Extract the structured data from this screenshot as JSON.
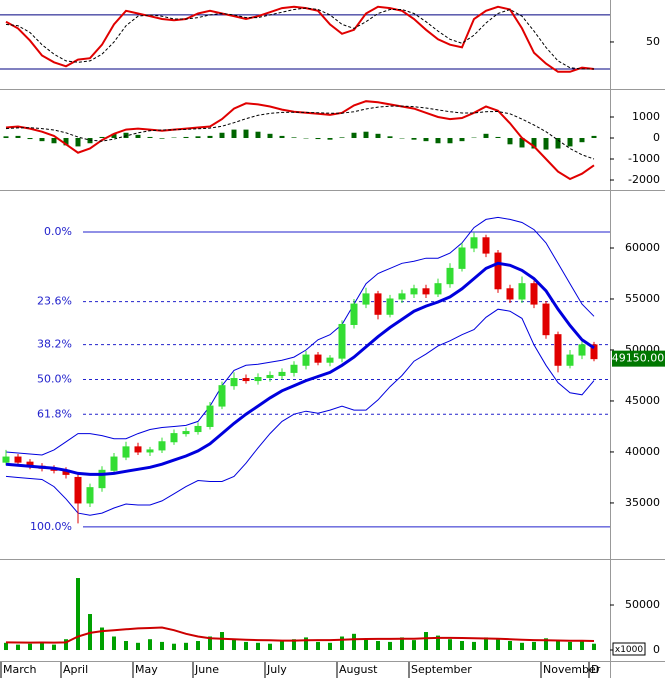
{
  "chart_data": [
    {
      "type": "line",
      "ylim": [
        16,
        81
      ],
      "yticks": [
        50
      ],
      "levels": [
        30,
        70
      ],
      "series": [
        {
          "color": "#e00000",
          "values": [
            65,
            60,
            51,
            40,
            35,
            32,
            37,
            38,
            48,
            63,
            73,
            71,
            69,
            67,
            66,
            67,
            71,
            73,
            71,
            69,
            67,
            69,
            72,
            75,
            76,
            75,
            73,
            63,
            56,
            59,
            71,
            76,
            75,
            73,
            67,
            59,
            52,
            48,
            46,
            67,
            73,
            76,
            74,
            60,
            42,
            34,
            28,
            28,
            31,
            30
          ]
        },
        {
          "color": "#000000",
          "dashed": true,
          "values": [
            63,
            62,
            57,
            48,
            41,
            36,
            35,
            36,
            41,
            50,
            62,
            69,
            70,
            69,
            67,
            67,
            68,
            70,
            71,
            70,
            68,
            68,
            70,
            72,
            74,
            75,
            74,
            70,
            63,
            60,
            65,
            71,
            74,
            74,
            71,
            65,
            58,
            52,
            49,
            55,
            64,
            71,
            74,
            69,
            58,
            46,
            36,
            31,
            30,
            30
          ]
        }
      ]
    },
    {
      "type": "macd",
      "ylim": [
        -2380,
        2190
      ],
      "yticks": [
        1000,
        0,
        -1000,
        -2000
      ],
      "histogram": {
        "color": "#006400",
        "values": [
          80,
          100,
          -50,
          -150,
          -250,
          -350,
          -400,
          -250,
          50,
          200,
          250,
          150,
          50,
          -30,
          20,
          50,
          80,
          100,
          250,
          400,
          400,
          300,
          200,
          100,
          30,
          -20,
          -50,
          -80,
          30,
          250,
          300,
          200,
          80,
          -20,
          -80,
          -150,
          -250,
          -250,
          -150,
          20,
          200,
          50,
          -300,
          -450,
          -500,
          -550,
          -500,
          -400,
          -200,
          100
        ]
      },
      "series": [
        {
          "color": "#e00000",
          "values": [
            500,
            550,
            450,
            300,
            100,
            -300,
            -700,
            -500,
            -100,
            200,
            400,
            450,
            400,
            350,
            400,
            450,
            500,
            550,
            900,
            1400,
            1650,
            1600,
            1500,
            1350,
            1250,
            1200,
            1150,
            1100,
            1200,
            1550,
            1750,
            1700,
            1600,
            1500,
            1400,
            1200,
            1000,
            900,
            950,
            1200,
            1500,
            1300,
            700,
            0,
            -400,
            -1000,
            -1600,
            -1950,
            -1700,
            -1300
          ]
        },
        {
          "color": "#000000",
          "dashed": true,
          "values": [
            450,
            480,
            490,
            450,
            380,
            250,
            50,
            -100,
            -150,
            -50,
            100,
            250,
            350,
            380,
            390,
            410,
            440,
            470,
            560,
            730,
            920,
            1080,
            1170,
            1220,
            1230,
            1220,
            1200,
            1180,
            1180,
            1250,
            1380,
            1470,
            1520,
            1520,
            1490,
            1430,
            1340,
            1250,
            1190,
            1190,
            1250,
            1260,
            1150,
            900,
            620,
            300,
            -100,
            -500,
            -800,
            -1000
          ]
        }
      ]
    },
    {
      "type": "candlestick",
      "ylim": [
        29700,
        65490
      ],
      "yticks": [
        60000,
        55000,
        50000,
        45000,
        40000,
        35000
      ],
      "up_color": "#33dd33",
      "down_color": "#e00000",
      "open": [
        39000,
        39500,
        39000,
        38600,
        38400,
        38200,
        37500,
        35000,
        36500,
        38200,
        39500,
        40500,
        40000,
        40200,
        41000,
        41800,
        42000,
        42500,
        44500,
        46500,
        47200,
        47000,
        47300,
        47500,
        47800,
        48500,
        49500,
        48800,
        49200,
        52500,
        54500,
        55500,
        53500,
        55000,
        55500,
        56000,
        55500,
        56500,
        58000,
        60000,
        61000,
        59500,
        56000,
        55000,
        56500,
        54500,
        51500,
        48500,
        49500,
        50500
      ],
      "high": [
        40200,
        39800,
        39300,
        38900,
        38700,
        38500,
        37900,
        36900,
        38600,
        39900,
        41000,
        40900,
        40500,
        41400,
        42200,
        42400,
        42900,
        44900,
        46900,
        47800,
        47600,
        47700,
        47900,
        48200,
        48900,
        49900,
        49800,
        49500,
        52900,
        55000,
        56100,
        55800,
        55400,
        55900,
        56400,
        56400,
        57000,
        58500,
        60500,
        61500,
        61300,
        59800,
        56400,
        57200,
        56800,
        54800,
        51800,
        50000,
        50900,
        50800
      ],
      "low": [
        38700,
        38600,
        38300,
        38100,
        37900,
        37400,
        33000,
        34600,
        36100,
        37900,
        39200,
        39700,
        39600,
        39900,
        40700,
        41500,
        41700,
        42200,
        44200,
        46100,
        46700,
        46600,
        46900,
        47100,
        47400,
        48100,
        48500,
        48400,
        48800,
        52100,
        54100,
        53000,
        53200,
        54600,
        55100,
        55100,
        55200,
        56100,
        57700,
        59600,
        59100,
        55600,
        54600,
        54600,
        54100,
        51100,
        47800,
        48200,
        49100,
        48900
      ],
      "close": [
        39500,
        39000,
        38600,
        38400,
        38200,
        37800,
        35000,
        36500,
        38200,
        39500,
        40500,
        40000,
        40200,
        41000,
        41800,
        42000,
        42500,
        44500,
        46500,
        47200,
        47000,
        47300,
        47500,
        47800,
        48500,
        49500,
        48800,
        49200,
        52500,
        54500,
        55500,
        53500,
        55000,
        55500,
        56000,
        55500,
        56500,
        58000,
        60000,
        61000,
        59500,
        56000,
        55000,
        56500,
        54500,
        51500,
        48500,
        49500,
        50500,
        49150
      ],
      "series": [
        {
          "color": "#0000dd",
          "width": 3,
          "values": [
            38800,
            38700,
            38600,
            38500,
            38400,
            38200,
            37900,
            37800,
            37800,
            37900,
            38100,
            38300,
            38500,
            38800,
            39200,
            39600,
            40100,
            40800,
            41800,
            42800,
            43700,
            44500,
            45300,
            46000,
            46500,
            47000,
            47400,
            47800,
            48500,
            49300,
            50300,
            51300,
            52200,
            53000,
            53800,
            54300,
            54700,
            55200,
            56000,
            57000,
            58000,
            58500,
            58300,
            57800,
            57000,
            55800,
            54000,
            52400,
            51000,
            50200
          ]
        },
        {
          "color": "#0000dd",
          "width": 1,
          "values": [
            40000,
            39900,
            39800,
            39700,
            40200,
            41000,
            41800,
            41800,
            41600,
            41300,
            41300,
            41800,
            42200,
            42400,
            42500,
            42600,
            43000,
            44500,
            46500,
            48000,
            48500,
            48600,
            48800,
            49000,
            49300,
            50000,
            51000,
            51500,
            52500,
            54500,
            56500,
            57500,
            58000,
            58500,
            58700,
            59000,
            59000,
            59500,
            60500,
            62000,
            62800,
            63000,
            62800,
            62500,
            61800,
            60500,
            58500,
            56500,
            54500,
            53300
          ]
        },
        {
          "color": "#0000dd",
          "width": 1,
          "values": [
            37600,
            37500,
            37400,
            37300,
            36600,
            35400,
            34000,
            33800,
            34000,
            34500,
            34900,
            34800,
            34800,
            35200,
            35900,
            36600,
            37200,
            37100,
            37100,
            37600,
            38900,
            40400,
            41800,
            43000,
            43700,
            44000,
            43800,
            44100,
            44500,
            44100,
            44100,
            45100,
            46400,
            47500,
            48900,
            49600,
            50400,
            50900,
            51500,
            52000,
            53200,
            54000,
            53800,
            53100,
            50500,
            48500,
            46800,
            45800,
            45600,
            47000
          ]
        }
      ],
      "fib_color": "#2222cc",
      "fib_levels": [
        {
          "value": 61570,
          "label": "0.0%"
        },
        {
          "value": 54745,
          "label": "23.6%"
        },
        {
          "value": 50523,
          "label": "38.2%"
        },
        {
          "value": 47110,
          "label": "50.0%"
        },
        {
          "value": 43697,
          "label": "61.8%"
        },
        {
          "value": 32650,
          "label": "100.0%"
        }
      ],
      "last_price": {
        "value": 49150,
        "label": "49150.00"
      }
    },
    {
      "type": "bar",
      "ylim": [
        -11100,
        97800
      ],
      "yticks": [
        50000,
        0
      ],
      "unit_label": "x1000",
      "color": "#00a000",
      "values": [
        8000,
        6000,
        7000,
        9000,
        6000,
        12000,
        80000,
        40000,
        25000,
        15000,
        10000,
        8000,
        12000,
        9000,
        7000,
        8000,
        10000,
        15000,
        20000,
        12000,
        9000,
        8000,
        7000,
        10000,
        12000,
        14000,
        9000,
        8000,
        15000,
        18000,
        12000,
        10000,
        9000,
        14000,
        11000,
        20000,
        16000,
        12000,
        10000,
        9000,
        14000,
        12000,
        10000,
        8000,
        9000,
        13000,
        11000,
        9000,
        10000,
        7000
      ],
      "series": [
        {
          "color": "#cc0000",
          "width": 2,
          "values": [
            8500,
            8300,
            8200,
            8300,
            8200,
            8500,
            15000,
            19000,
            21000,
            22000,
            23000,
            24000,
            24500,
            25000,
            22000,
            18000,
            15000,
            13000,
            12500,
            12000,
            11500,
            11000,
            10800,
            10500,
            10500,
            10800,
            11000,
            11000,
            11500,
            12000,
            12200,
            12300,
            12300,
            12500,
            12500,
            13000,
            13500,
            13500,
            13300,
            13000,
            12800,
            12500,
            12000,
            11500,
            11000,
            10800,
            10600,
            10400,
            10300,
            10000
          ]
        }
      ],
      "categories": [
        "March",
        null,
        null,
        null,
        null,
        "April",
        null,
        null,
        null,
        null,
        null,
        "May",
        null,
        null,
        null,
        null,
        "June",
        null,
        null,
        null,
        null,
        null,
        "July",
        null,
        null,
        null,
        null,
        null,
        "August",
        null,
        null,
        null,
        null,
        null,
        "September",
        null,
        null,
        null,
        null,
        null,
        null,
        null,
        null,
        null,
        null,
        "November",
        null,
        null,
        null,
        "D"
      ]
    }
  ]
}
